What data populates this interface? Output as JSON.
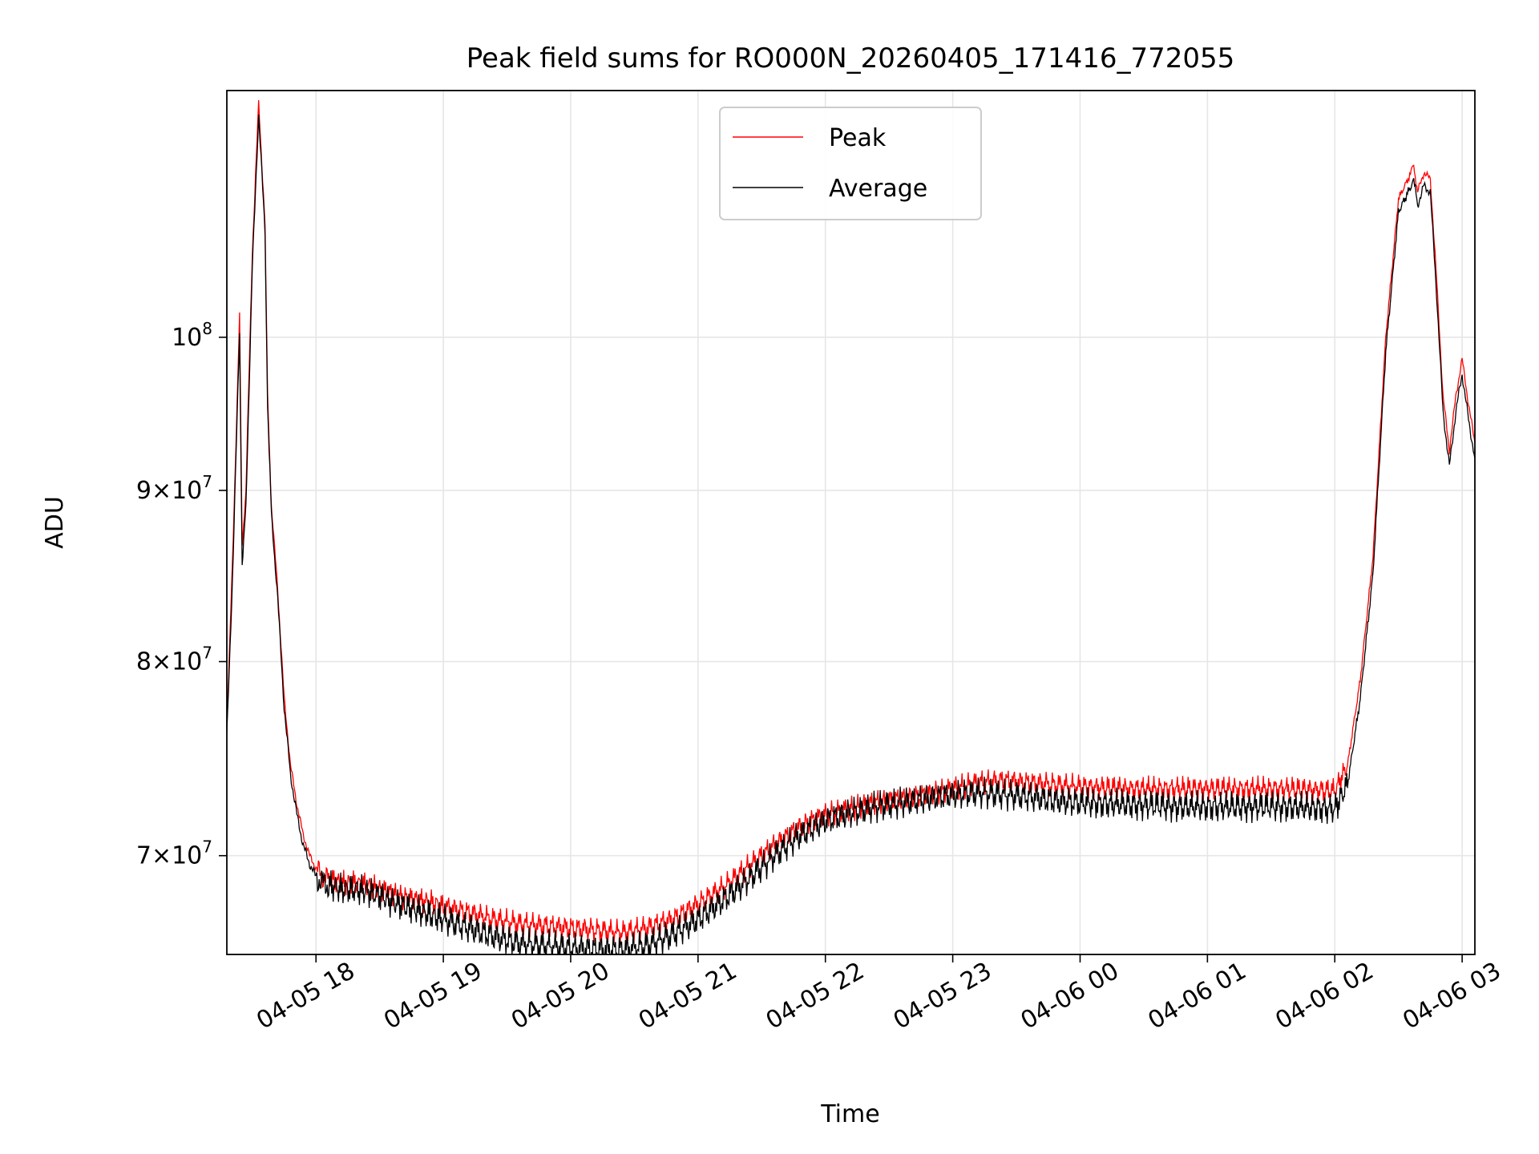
{
  "chart_data": {
    "type": "line",
    "title": "Peak field sums for RO000N_20260405_171416_772055",
    "xlabel": "Time",
    "ylabel": "ADU",
    "yscale": "log",
    "x_unit": "hours since 04-05 17:00",
    "xlim": [
      17.3,
      27.1
    ],
    "ylim": [
      65400000,
      118500000
    ],
    "grid": true,
    "legend_position": "upper center",
    "x_ticks": [
      {
        "value": 18,
        "label": "04-05 18"
      },
      {
        "value": 19,
        "label": "04-05 19"
      },
      {
        "value": 20,
        "label": "04-05 20"
      },
      {
        "value": 21,
        "label": "04-05 21"
      },
      {
        "value": 22,
        "label": "04-05 22"
      },
      {
        "value": 23,
        "label": "04-05 23"
      },
      {
        "value": 24,
        "label": "04-06 00"
      },
      {
        "value": 25,
        "label": "04-06 01"
      },
      {
        "value": 26,
        "label": "04-06 02"
      },
      {
        "value": 27,
        "label": "04-06 03"
      }
    ],
    "y_ticks": [
      {
        "value": 70000000,
        "mant": "7",
        "exp": "7"
      },
      {
        "value": 80000000,
        "mant": "8",
        "exp": "7"
      },
      {
        "value": 90000000,
        "mant": "9",
        "exp": "7"
      },
      {
        "value": 100000000,
        "mant": "",
        "exp": "8"
      }
    ],
    "series": [
      {
        "name": "Peak",
        "color": "#ff0000",
        "x": [
          17.3,
          17.35,
          17.4,
          17.42,
          17.45,
          17.5,
          17.55,
          17.6,
          17.62,
          17.65,
          17.7,
          17.75,
          17.8,
          17.85,
          17.9,
          17.95,
          18.0,
          18.05,
          18.1,
          18.2,
          18.3,
          18.4,
          18.5,
          18.6,
          18.7,
          18.8,
          18.9,
          19.0,
          19.2,
          19.4,
          19.6,
          19.8,
          20.0,
          20.2,
          20.4,
          20.6,
          20.8,
          21.0,
          21.2,
          21.4,
          21.6,
          21.8,
          22.0,
          22.2,
          22.4,
          22.6,
          22.8,
          23.0,
          23.2,
          23.4,
          23.6,
          23.8,
          24.0,
          24.4,
          24.8,
          25.2,
          25.6,
          26.0,
          26.1,
          26.2,
          26.3,
          26.4,
          26.5,
          26.6,
          26.62,
          26.65,
          26.7,
          26.75,
          26.8,
          26.85,
          26.9,
          26.95,
          27.0,
          27.05,
          27.1
        ],
        "values": [
          76500000,
          87000000,
          101500000,
          86500000,
          90000000,
          106000000,
          117500000,
          108000000,
          96000000,
          89000000,
          84000000,
          78000000,
          74500000,
          72500000,
          71000000,
          70000000,
          69400000,
          69000000,
          68900000,
          68700000,
          68700000,
          68600000,
          68400000,
          68200000,
          68000000,
          67900000,
          67800000,
          67600000,
          67300000,
          67000000,
          66800000,
          66700000,
          66600000,
          66500000,
          66400000,
          66600000,
          67000000,
          67700000,
          68500000,
          69500000,
          70500000,
          71400000,
          72000000,
          72300000,
          72600000,
          72800000,
          73000000,
          73300000,
          73600000,
          73700000,
          73600000,
          73500000,
          73400000,
          73300000,
          73300000,
          73300000,
          73300000,
          73200000,
          74500000,
          79000000,
          86000000,
          100000000,
          110000000,
          112000000,
          112500000,
          110500000,
          112000000,
          111500000,
          104000000,
          96000000,
          92500000,
          96000000,
          98500000,
          95500000,
          93000000
        ]
      },
      {
        "name": "Average",
        "color": "#000000",
        "x": [
          17.3,
          17.35,
          17.4,
          17.42,
          17.45,
          17.5,
          17.55,
          17.6,
          17.62,
          17.65,
          17.7,
          17.75,
          17.8,
          17.85,
          17.9,
          17.95,
          18.0,
          18.05,
          18.1,
          18.2,
          18.3,
          18.4,
          18.5,
          18.6,
          18.7,
          18.8,
          18.9,
          19.0,
          19.2,
          19.4,
          19.6,
          19.8,
          20.0,
          20.2,
          20.4,
          20.6,
          20.8,
          21.0,
          21.2,
          21.4,
          21.6,
          21.8,
          22.0,
          22.2,
          22.4,
          22.6,
          22.8,
          23.0,
          23.2,
          23.4,
          23.6,
          23.8,
          24.0,
          24.4,
          24.8,
          25.2,
          25.6,
          26.0,
          26.1,
          26.2,
          26.3,
          26.4,
          26.5,
          26.6,
          26.62,
          26.65,
          26.7,
          26.75,
          26.8,
          26.85,
          26.9,
          26.95,
          27.0,
          27.05,
          27.1
        ],
        "values": [
          76000000,
          86000000,
          100500000,
          85500000,
          89000000,
          105000000,
          116500000,
          107500000,
          95500000,
          88500000,
          83500000,
          77500000,
          74000000,
          72000000,
          70500000,
          69600000,
          69000000,
          68700000,
          68600000,
          68400000,
          68400000,
          68300000,
          68100000,
          67800000,
          67600000,
          67400000,
          67200000,
          67000000,
          66600000,
          66200000,
          65900000,
          65800000,
          65700000,
          65600000,
          65600000,
          65800000,
          66300000,
          67000000,
          67900000,
          68900000,
          70000000,
          71000000,
          71700000,
          72100000,
          72400000,
          72600000,
          72800000,
          73000000,
          73100000,
          73000000,
          72900000,
          72700000,
          72600000,
          72500000,
          72400000,
          72400000,
          72400000,
          72300000,
          73500000,
          78000000,
          85000000,
          99000000,
          109000000,
          111000000,
          111500000,
          109500000,
          111000000,
          110500000,
          103000000,
          95000000,
          91500000,
          95000000,
          97500000,
          94500000,
          92000000
        ]
      }
    ]
  }
}
